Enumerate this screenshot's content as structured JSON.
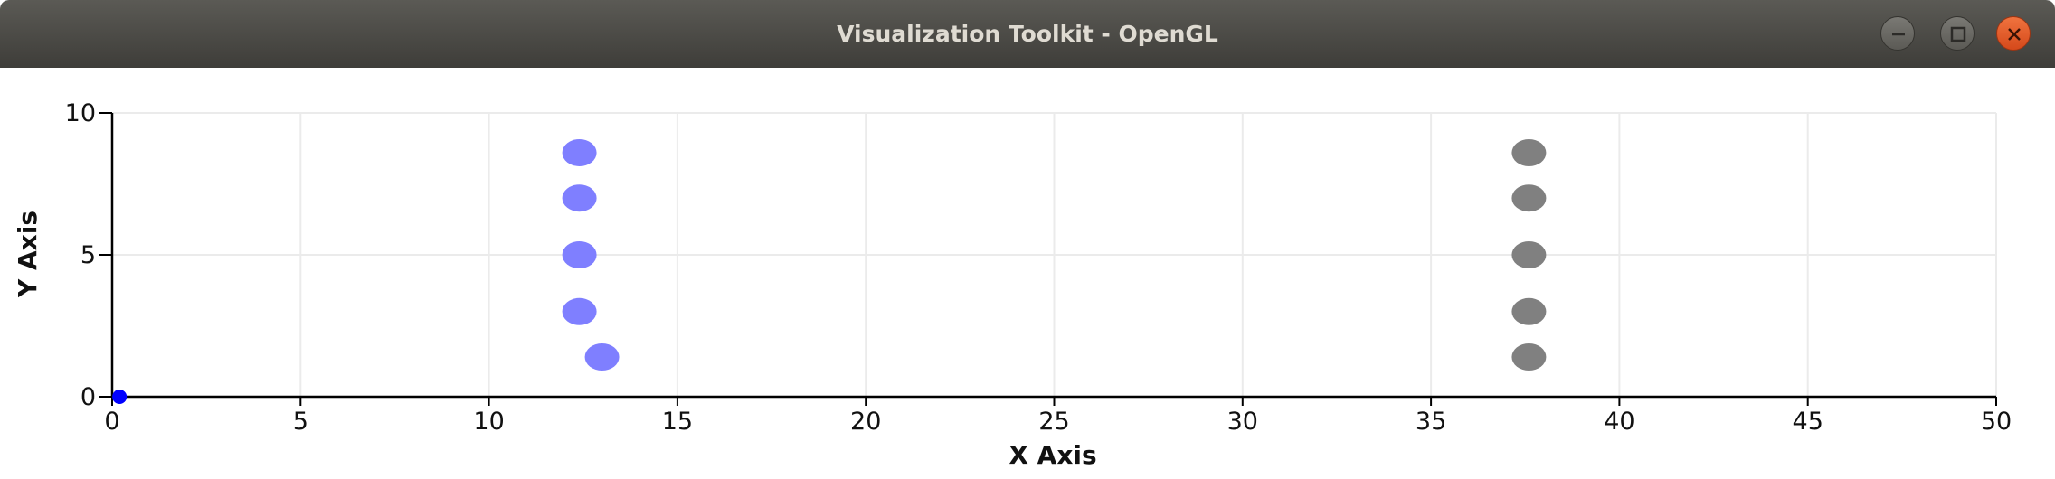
{
  "window": {
    "title": "Visualization Toolkit - OpenGL"
  },
  "chart_data": {
    "type": "scatter",
    "xlabel": "X Axis",
    "ylabel": "Y Axis",
    "xlim": [
      0,
      50
    ],
    "ylim": [
      0,
      10
    ],
    "xticks": [
      0,
      5,
      10,
      15,
      20,
      25,
      30,
      35,
      40,
      45,
      50
    ],
    "yticks": [
      0,
      5,
      10
    ],
    "grid": true,
    "series": [
      {
        "color": "#7f7fff",
        "points": [
          [
            0.1,
            0
          ],
          [
            13,
            1.4
          ],
          [
            12.4,
            3.0
          ],
          [
            12.4,
            5.0
          ],
          [
            12.4,
            7.0
          ],
          [
            12.4,
            8.6
          ]
        ]
      },
      {
        "color": "#808080",
        "points": [
          [
            37.6,
            1.4
          ],
          [
            37.6,
            3.0
          ],
          [
            37.6,
            5.0
          ],
          [
            37.6,
            7.0
          ],
          [
            37.6,
            8.6
          ]
        ]
      }
    ],
    "origin_marker_color": "#0000ff"
  }
}
